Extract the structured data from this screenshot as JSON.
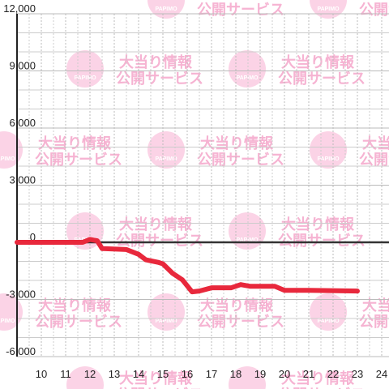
{
  "chart_data": {
    "type": "line",
    "watermark": {
      "line1": "大当り情報",
      "line2": "公開サービス",
      "logo": "PAPIMO"
    },
    "x": [
      9,
      11.7,
      12,
      12.3,
      12.5,
      13.5,
      14,
      14.3,
      14.8,
      15,
      15.4,
      15.8,
      16.2,
      16.5,
      17,
      17.8,
      18.2,
      18.6,
      19.6,
      20,
      21,
      23
    ],
    "series": [
      {
        "color": "#e8283c",
        "values": [
          0,
          0,
          150,
          80,
          -330,
          -380,
          -630,
          -920,
          -1050,
          -1130,
          -1630,
          -1970,
          -2600,
          -2560,
          -2390,
          -2390,
          -2220,
          -2310,
          -2310,
          -2520,
          -2520,
          -2560
        ]
      }
    ],
    "xlim": [
      9,
      24.3
    ],
    "xticks": [
      10,
      11,
      12,
      13,
      14,
      15,
      16,
      17,
      18,
      19,
      20,
      21,
      22,
      23,
      24
    ],
    "ylim": [
      -6000,
      12000
    ],
    "yticks": [
      {
        "value": -6000,
        "label": "-6,000"
      },
      {
        "value": -3000,
        "label": "-3,000"
      },
      0,
      {
        "value": 3000,
        "label": "3,000"
      },
      {
        "value": 6000,
        "label": "6,000"
      },
      {
        "value": 9000,
        "label": "9,000"
      },
      {
        "value": 12000,
        "label": "12,000"
      }
    ],
    "grid": true
  }
}
